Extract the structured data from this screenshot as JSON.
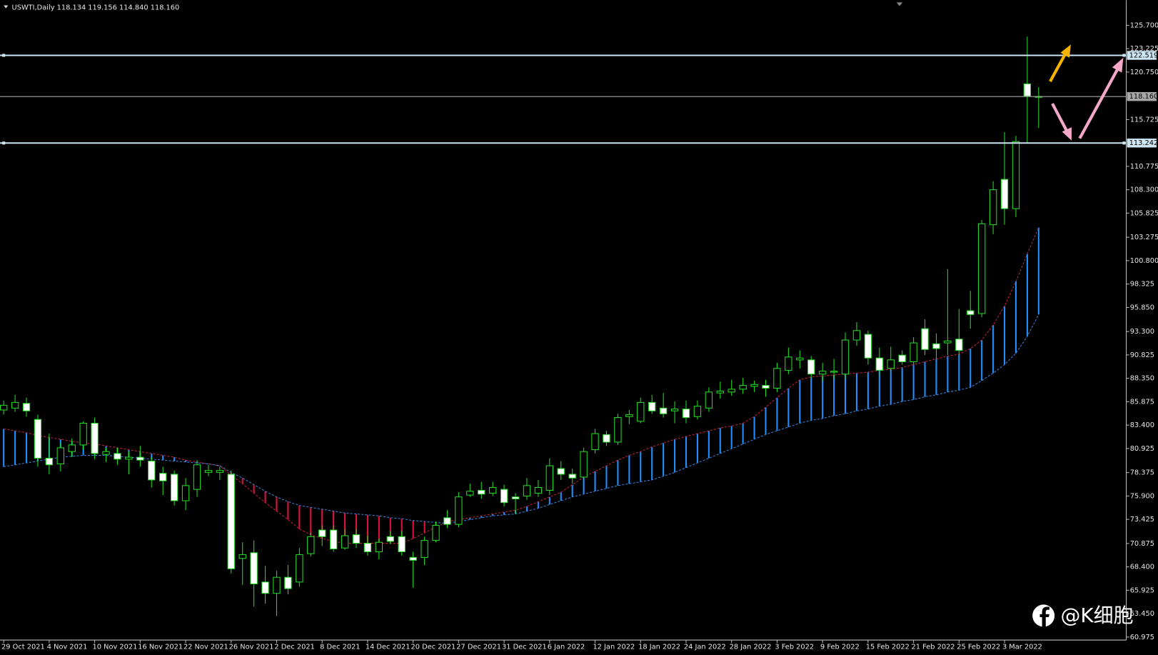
{
  "header": "USWTI,Daily  118.134 119.156 114.840 118.160",
  "watermark": "@K细胞",
  "chart_data": {
    "type": "candlestick",
    "categories": [
      "29 Oct 2021",
      null,
      null,
      null,
      "4 Nov 2021",
      null,
      null,
      null,
      "10 Nov 2021",
      null,
      null,
      null,
      "16 Nov 2021",
      null,
      null,
      null,
      "22 Nov 2021",
      null,
      null,
      null,
      "26 Nov 2021",
      null,
      null,
      null,
      "2 Dec 2021",
      null,
      null,
      null,
      "8 Dec 2021",
      null,
      null,
      null,
      "14 Dec 2021",
      null,
      null,
      null,
      "20 Dec 2021",
      null,
      null,
      null,
      "27 Dec 2021",
      null,
      null,
      null,
      "31 Dec 2021",
      null,
      null,
      null,
      "6 Jan 2022",
      null,
      null,
      null,
      "12 Jan 2022",
      null,
      null,
      null,
      "18 Jan 2022",
      null,
      null,
      null,
      "24 Jan 2022",
      null,
      null,
      null,
      "28 Jan 2022",
      null,
      null,
      null,
      "3 Feb 2022",
      null,
      null,
      null,
      "9 Feb 2022",
      null,
      null,
      null,
      "15 Feb 2022",
      null,
      null,
      null,
      "21 Feb 2022",
      null,
      null,
      null,
      "25 Feb 2022",
      null,
      null,
      null,
      "3 Mar 2022",
      null,
      null,
      null
    ],
    "open": [
      85.0,
      85.2,
      85.7,
      84.0,
      79.9,
      79.3,
      80.6,
      81.3,
      83.6,
      80.3,
      80.4,
      79.8,
      80.0,
      79.6,
      78.3,
      78.2,
      75.4,
      76.6,
      78.4,
      78.4,
      78.2,
      69.3,
      69.9,
      66.8,
      65.6,
      67.3,
      66.8,
      69.8,
      72.3,
      72.3,
      70.4,
      71.8,
      70.9,
      70.0,
      71.6,
      71.6,
      69.4,
      69.4,
      71.2,
      73.6,
      72.9,
      76.0,
      76.5,
      76.2,
      76.6,
      75.8,
      75.9,
      76.2,
      76.5,
      78.8,
      78.2,
      77.9,
      80.8,
      82.4,
      81.6,
      84.3,
      83.8,
      85.8,
      85.2,
      84.9,
      85.1,
      84.3,
      85.2,
      86.8,
      86.9,
      87.2,
      87.5,
      87.6,
      87.3,
      89.2,
      90.3,
      90.3,
      88.8,
      89.0,
      88.8,
      92.4,
      93.0,
      90.5,
      89.4,
      90.8,
      90.1,
      93.6,
      92.0,
      92.1,
      92.5,
      95.5,
      95.2,
      104.6,
      109.4,
      106.3,
      119.5,
      118.134
    ],
    "high": [
      86.0,
      86.6,
      86.3,
      84.5,
      82.5,
      81.5,
      82.0,
      83.8,
      84.2,
      81.0,
      81.0,
      80.6,
      81.2,
      80.0,
      79.0,
      78.6,
      77.8,
      79.7,
      79.2,
      79.0,
      78.6,
      71.0,
      71.2,
      68.5,
      68.0,
      68.6,
      70.4,
      72.0,
      72.8,
      72.8,
      72.4,
      72.4,
      71.7,
      71.4,
      72.2,
      72.2,
      70.0,
      71.6,
      73.2,
      74.4,
      76.3,
      77.2,
      77.4,
      77.4,
      77.1,
      76.2,
      77.8,
      77.6,
      79.9,
      79.6,
      78.8,
      81.0,
      83.0,
      82.8,
      84.6,
      85.0,
      86.3,
      86.6,
      86.8,
      85.9,
      86.0,
      86.0,
      87.4,
      88.0,
      88.2,
      88.4,
      88.1,
      88.2,
      90.0,
      91.6,
      91.3,
      90.7,
      90.0,
      90.4,
      93.2,
      94.3,
      93.4,
      91.6,
      91.7,
      91.3,
      92.7,
      94.6,
      93.1,
      99.9,
      95.7,
      97.6,
      105.1,
      109.2,
      114.4,
      114.0,
      124.5,
      119.156
    ],
    "low": [
      84.5,
      84.8,
      84.3,
      79.0,
      78.2,
      78.5,
      80.0,
      80.8,
      79.8,
      79.5,
      79.2,
      78.2,
      79.0,
      76.8,
      76.0,
      74.9,
      74.4,
      75.8,
      78.0,
      77.6,
      67.7,
      66.5,
      64.2,
      64.5,
      63.2,
      65.5,
      66.3,
      69.5,
      70.6,
      70.0,
      70.2,
      70.4,
      69.6,
      69.2,
      70.8,
      69.6,
      66.2,
      68.6,
      71.0,
      72.5,
      72.6,
      75.8,
      75.6,
      75.9,
      74.8,
      74.0,
      75.5,
      75.8,
      76.0,
      77.6,
      77.2,
      77.6,
      80.4,
      81.2,
      81.3,
      83.5,
      83.6,
      84.6,
      84.2,
      83.6,
      83.6,
      84.0,
      84.8,
      86.2,
      86.5,
      86.7,
      86.9,
      86.4,
      86.9,
      88.8,
      89.4,
      88.4,
      88.1,
      88.3,
      88.3,
      91.8,
      89.8,
      88.6,
      89.0,
      89.8,
      89.8,
      90.8,
      90.4,
      90.8,
      90.8,
      93.6,
      94.8,
      103.6,
      104.6,
      105.4,
      113.3,
      114.84
    ],
    "close": [
      85.5,
      85.8,
      84.9,
      79.9,
      79.2,
      81.0,
      81.3,
      83.6,
      80.4,
      80.6,
      79.8,
      80.0,
      79.7,
      77.6,
      77.5,
      75.4,
      77.0,
      79.2,
      78.6,
      78.6,
      68.2,
      69.7,
      66.6,
      65.6,
      67.3,
      66.1,
      69.7,
      71.6,
      71.6,
      70.3,
      71.7,
      70.9,
      70.0,
      71.0,
      71.1,
      70.0,
      69.1,
      71.2,
      72.8,
      72.9,
      75.8,
      76.4,
      76.1,
      76.8,
      75.2,
      75.6,
      77.0,
      76.8,
      79.1,
      78.2,
      77.8,
      80.6,
      82.5,
      81.6,
      84.2,
      84.5,
      85.8,
      84.9,
      84.6,
      85.1,
      84.2,
      85.4,
      86.9,
      87.0,
      87.2,
      87.6,
      87.7,
      87.3,
      89.4,
      90.6,
      90.5,
      88.8,
      89.1,
      89.1,
      92.4,
      93.4,
      90.5,
      89.2,
      90.3,
      90.1,
      92.1,
      91.4,
      91.5,
      92.3,
      91.3,
      95.1,
      104.7,
      108.3,
      106.3,
      113.4,
      118.2,
      118.16
    ],
    "up_color": "#000000",
    "down_color": "#ffffff",
    "wick_color": "#22dd22",
    "cloud": [
      {
        "color": "#c0203a",
        "values": [
          83.0,
          82.8,
          82.6,
          82.3,
          82.1,
          81.9,
          81.7,
          81.5,
          81.4,
          81.2,
          81.0,
          80.8,
          80.6,
          80.4,
          80.2,
          80.0,
          79.7,
          79.5,
          79.3,
          79.1,
          78.1,
          77.2,
          76.2,
          75.2,
          74.3,
          73.4,
          72.4,
          71.8,
          71.4,
          71.1,
          70.9,
          70.9,
          70.9,
          70.9,
          70.9,
          70.9,
          71.4,
          72.0,
          72.6,
          73.2,
          73.4,
          73.6,
          73.8,
          74.0,
          74.2,
          74.4,
          74.8,
          75.3,
          75.8,
          76.3,
          77.1,
          77.9,
          78.5,
          79.1,
          79.7,
          80.2,
          80.6,
          81.1,
          81.5,
          81.9,
          82.2,
          82.5,
          82.8,
          83.1,
          83.3,
          83.6,
          84.3,
          85.3,
          86.3,
          87.3,
          88.2,
          88.5,
          88.6,
          88.7,
          88.8,
          88.9,
          89.0,
          89.2,
          89.3,
          89.5,
          89.8,
          90.1,
          90.4,
          90.7,
          90.9,
          91.5,
          92.4,
          94.0,
          96.0,
          98.6,
          101.5,
          104.3
        ]
      },
      {
        "color": "#3a7fd8",
        "values": [
          79.0,
          79.2,
          79.4,
          79.6,
          79.8,
          80.0,
          80.1,
          80.2,
          80.2,
          80.2,
          80.1,
          80.0,
          79.9,
          79.8,
          79.7,
          79.6,
          79.5,
          79.4,
          79.3,
          79.1,
          78.4,
          77.8,
          77.1,
          76.4,
          75.8,
          75.3,
          74.9,
          74.7,
          74.5,
          74.3,
          74.1,
          74.0,
          73.9,
          73.8,
          73.6,
          73.5,
          73.3,
          73.2,
          73.1,
          73.0,
          73.2,
          73.4,
          73.6,
          73.8,
          73.9,
          74.0,
          74.3,
          74.6,
          75.0,
          75.4,
          75.8,
          76.1,
          76.4,
          76.7,
          77.0,
          77.2,
          77.4,
          77.6,
          78.0,
          78.4,
          78.9,
          79.4,
          79.9,
          80.4,
          80.9,
          81.4,
          81.9,
          82.4,
          82.8,
          83.2,
          83.6,
          83.9,
          84.1,
          84.4,
          84.6,
          84.9,
          85.1,
          85.4,
          85.6,
          85.9,
          86.1,
          86.4,
          86.6,
          86.9,
          87.1,
          87.4,
          88.1,
          88.9,
          89.8,
          91.0,
          92.8,
          95.1
        ]
      }
    ],
    "cloud_up_color": "#1e90ff",
    "cloud_down_color": "#dc143c",
    "levels": [
      {
        "price": 122.519,
        "color": "#cde6f2"
      },
      {
        "price": {
          "value": 118.16,
          "label": "118.160"
        },
        "color": "#a8a8a8"
      },
      {
        "price": 113.242,
        "color": "#cde6f2"
      }
    ],
    "ylim": [
      60.66,
      128.2
    ],
    "yticks": [
      {
        "value": 125.7,
        "label": "125.700"
      },
      123.225,
      {
        "value": 120.75,
        "label": "120.750"
      },
      115.725,
      110.775,
      {
        "value": 108.3,
        "label": "108.300"
      },
      105.825,
      103.275,
      {
        "value": 100.8,
        "label": "100.800"
      },
      98.325,
      {
        "value": 95.85,
        "label": "95.850"
      },
      {
        "value": 93.3,
        "label": "93.300"
      },
      90.825,
      {
        "value": 88.35,
        "label": "88.350"
      },
      85.875,
      {
        "value": 83.4,
        "label": "83.400"
      },
      80.925,
      78.375,
      {
        "value": 75.9,
        "label": "75.900"
      },
      73.425,
      70.875,
      {
        "value": 68.4,
        "label": "68.400"
      },
      65.925,
      {
        "value": 63.45,
        "label": "63.450"
      },
      60.975
    ]
  }
}
